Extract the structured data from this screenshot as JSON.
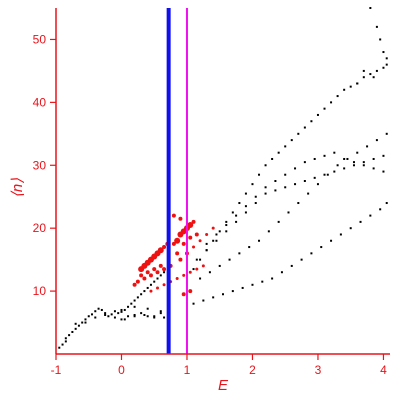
{
  "chart_data": {
    "type": "scatter",
    "title": "",
    "xlabel": "E",
    "ylabel": "⟨n⟩",
    "xlim": [
      -1,
      4.1
    ],
    "ylim": [
      0,
      55
    ],
    "x_ticks": [
      -1,
      0,
      1,
      2,
      3,
      4
    ],
    "y_ticks": [
      10,
      20,
      30,
      40,
      50
    ],
    "grid": false,
    "legend": "none",
    "vertical_lines": [
      {
        "x": 0.72,
        "color": "#1010ee"
      },
      {
        "x": 1.0,
        "color": "#ee10ee"
      }
    ],
    "colors": {
      "axis": "#e8141b",
      "black_points": "#000000",
      "red_points": "#ee1111"
    },
    "series": [
      {
        "color": "#000000",
        "x": [
          -0.95,
          -0.9,
          -0.85,
          -0.8,
          -0.75,
          -0.7,
          -0.65,
          -0.6,
          -0.55,
          -0.5,
          -0.45,
          -0.4,
          -0.35,
          -0.3,
          -0.25,
          -0.2,
          -0.15,
          -0.1,
          -0.05,
          0.0,
          0.05,
          0.1,
          0.15,
          0.2,
          0.25,
          0.3,
          0.35,
          0.4,
          0.45,
          0.5,
          0.55,
          0.6,
          0.65,
          -0.85,
          -0.7,
          -0.55,
          -0.4,
          -0.25,
          -0.1,
          0.05,
          0.2,
          0.35,
          0.5,
          0.65,
          1.1,
          1.2,
          1.3,
          1.4,
          1.5,
          1.6,
          1.7,
          1.8,
          1.9,
          2.0,
          2.1,
          2.2,
          2.3,
          2.4,
          2.5,
          2.6,
          2.7,
          2.8,
          2.9,
          3.0,
          3.1,
          3.2,
          3.3,
          3.4,
          3.5,
          3.6,
          3.7,
          3.8,
          3.9,
          4.0,
          4.05,
          1.2,
          1.35,
          1.5,
          1.65,
          1.8,
          1.95,
          2.1,
          2.25,
          2.4,
          2.55,
          2.7,
          2.85,
          3.0,
          3.15,
          3.3,
          3.45,
          3.6,
          3.75,
          3.9,
          4.05,
          1.3,
          1.45,
          1.6,
          1.75,
          1.9,
          2.05,
          2.2,
          2.35,
          2.5,
          2.65,
          2.8,
          2.95,
          3.1,
          3.25,
          3.4,
          3.55,
          3.7,
          3.85,
          4.0,
          1.1,
          1.25,
          1.4,
          1.55,
          1.7,
          1.85,
          2.0,
          2.15,
          2.3,
          2.45,
          2.6,
          2.75,
          2.9,
          3.05,
          3.2,
          3.35,
          3.5,
          3.65,
          3.8,
          3.95,
          4.05,
          1.15,
          1.3,
          1.45,
          1.6,
          1.75,
          1.9,
          2.05,
          2.2,
          2.35,
          2.5,
          2.65,
          2.8,
          2.95,
          3.1,
          3.25,
          3.4,
          3.55,
          3.7,
          3.85,
          4.0,
          0.0,
          0.1,
          0.2,
          0.3,
          0.4,
          0.5,
          0.6,
          0.0,
          0.2,
          0.4,
          0.6,
          3.8,
          3.9,
          3.95,
          4.0,
          4.05,
          3.7,
          3.85,
          3.6
        ],
        "y": [
          1.0,
          1.5,
          2.0,
          3.0,
          3.5,
          4.0,
          4.5,
          5.0,
          5.5,
          6.0,
          6.3,
          6.8,
          7.2,
          7.0,
          6.5,
          6.0,
          6.3,
          6.8,
          6.5,
          6.7,
          7.0,
          7.5,
          8.0,
          8.5,
          9.0,
          9.5,
          10.0,
          10.5,
          11.0,
          11.5,
          12.0,
          12.5,
          13.0,
          2.5,
          4.8,
          5.0,
          5.8,
          6.2,
          5.8,
          5.5,
          6.0,
          6.2,
          6.0,
          5.8,
          13.5,
          15.0,
          16.5,
          18.0,
          19.5,
          21.0,
          22.5,
          24.0,
          25.5,
          27.0,
          28.5,
          30.0,
          31.0,
          32.0,
          33.0,
          34.0,
          35.0,
          36.0,
          37.0,
          38.0,
          39.0,
          40.0,
          41.0,
          42.0,
          42.5,
          43.0,
          44.0,
          44.5,
          45.0,
          45.5,
          46.0,
          12.0,
          13.0,
          14.0,
          15.0,
          16.0,
          17.0,
          18.0,
          19.5,
          21.0,
          22.5,
          24.0,
          25.5,
          27.0,
          28.5,
          30.0,
          31.0,
          32.0,
          33.0,
          34.0,
          35.0,
          17.5,
          19.0,
          20.5,
          22.0,
          23.5,
          25.0,
          26.5,
          27.5,
          28.5,
          29.5,
          30.5,
          31.0,
          31.5,
          32.0,
          31.0,
          30.5,
          30.0,
          29.5,
          29.0,
          8.0,
          8.5,
          9.0,
          9.5,
          10.0,
          10.5,
          11.0,
          11.5,
          12.0,
          13.0,
          14.0,
          15.0,
          16.0,
          17.0,
          18.0,
          19.0,
          20.0,
          21.0,
          22.0,
          23.0,
          24.0,
          15.0,
          16.5,
          18.0,
          19.5,
          21.0,
          22.5,
          24.0,
          25.5,
          26.0,
          26.5,
          27.0,
          27.5,
          28.0,
          28.5,
          29.0,
          29.5,
          30.0,
          30.5,
          31.0,
          31.5,
          5.5,
          6.0,
          6.2,
          6.5,
          6.0,
          5.8,
          6.5,
          7.0,
          7.5,
          7.2,
          6.8,
          55.0,
          52.0,
          50.0,
          48.0,
          47.0,
          45.0,
          44.0,
          43.0
        ]
      },
      {
        "color": "#ee1111",
        "x": [
          0.3,
          0.35,
          0.4,
          0.45,
          0.5,
          0.55,
          0.6,
          0.65,
          0.7,
          0.8,
          0.85,
          0.9,
          0.95,
          1.0,
          1.05,
          1.1,
          0.35,
          0.45,
          0.55,
          0.65,
          0.75,
          0.85,
          0.95,
          1.05,
          1.15,
          0.45,
          0.55,
          0.65,
          0.75,
          0.85,
          0.95,
          1.05,
          1.15,
          1.25,
          0.2,
          0.25,
          0.3,
          0.4,
          0.5,
          0.6,
          0.9,
          1.0,
          1.1,
          1.2,
          1.3,
          1.4,
          0.95,
          1.05,
          0.8,
          0.9
        ],
        "y": [
          13.5,
          14.0,
          14.5,
          15.0,
          15.5,
          16.0,
          16.5,
          17.0,
          17.5,
          17.5,
          18.0,
          19.0,
          19.5,
          20.0,
          20.5,
          21.0,
          12.0,
          12.5,
          13.0,
          13.5,
          14.0,
          16.0,
          17.5,
          18.5,
          19.0,
          10.0,
          10.5,
          11.0,
          11.5,
          12.0,
          12.5,
          13.0,
          13.5,
          14.0,
          11.0,
          11.5,
          12.5,
          13.0,
          13.5,
          14.0,
          15.0,
          16.0,
          17.0,
          18.0,
          19.0,
          20.0,
          9.5,
          10.0,
          22.0,
          21.5
        ],
        "sizes": [
          3,
          3,
          3,
          3,
          3,
          3,
          3,
          2,
          2,
          2,
          3,
          3,
          3,
          3,
          3,
          2,
          2,
          2,
          2,
          2,
          2,
          2,
          2,
          2,
          2,
          1.5,
          1.5,
          1.5,
          1.5,
          1.5,
          1.5,
          1.5,
          1.5,
          1.5,
          2,
          2,
          2,
          2,
          2,
          2,
          2,
          2,
          1.5,
          1.5,
          1.5,
          1.5,
          2,
          2,
          2,
          2
        ]
      }
    ]
  }
}
